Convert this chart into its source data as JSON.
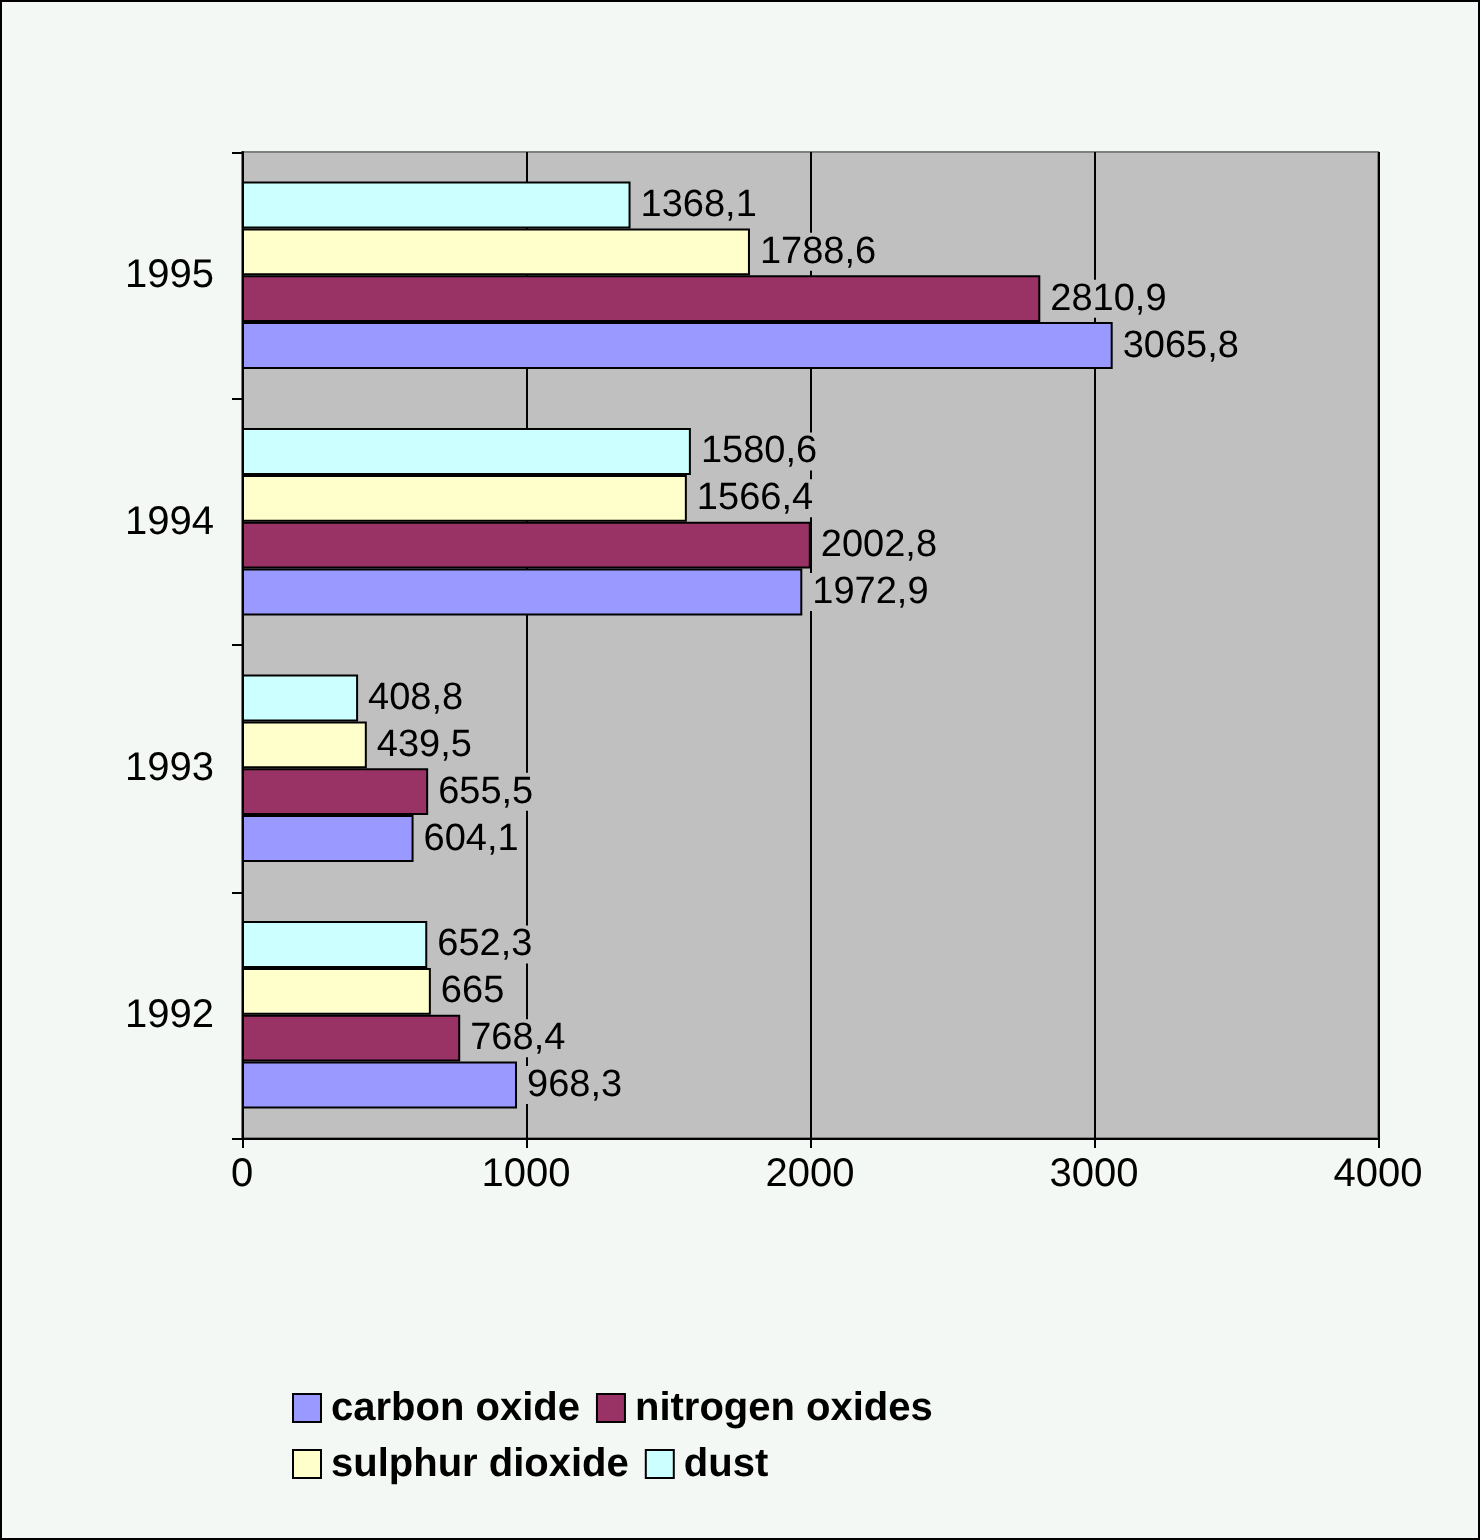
{
  "chart_data": {
    "type": "bar",
    "orientation": "horizontal",
    "categories": [
      "1995",
      "1994",
      "1993",
      "1992"
    ],
    "series": [
      {
        "name": "carbon oxide",
        "color": "#9999ff",
        "values": [
          3065.8,
          1972.9,
          604.1,
          968.3
        ],
        "value_labels": [
          "3065,8",
          "1972,9",
          "604,1",
          "968,3"
        ]
      },
      {
        "name": "nitrogen oxides",
        "color": "#993366",
        "values": [
          2810.9,
          2002.8,
          655.5,
          768.4
        ],
        "value_labels": [
          "2810,9",
          "2002,8",
          "655,5",
          "768,4"
        ]
      },
      {
        "name": "sulphur dioxide",
        "color": "#ffffcc",
        "values": [
          1788.6,
          1566.4,
          439.5,
          665
        ],
        "value_labels": [
          "1788,6",
          "1566,4",
          "439,5",
          "665"
        ]
      },
      {
        "name": "dust",
        "color": "#ccffff",
        "values": [
          1368.1,
          1580.6,
          408.8,
          652.3
        ],
        "value_labels": [
          "1368,1",
          "1580,6",
          "408,8",
          "652,3"
        ]
      }
    ],
    "xlim": [
      0,
      4000
    ],
    "xticks": [
      0,
      1000,
      2000,
      3000,
      4000
    ],
    "grid": "x",
    "legend": "bottom"
  }
}
